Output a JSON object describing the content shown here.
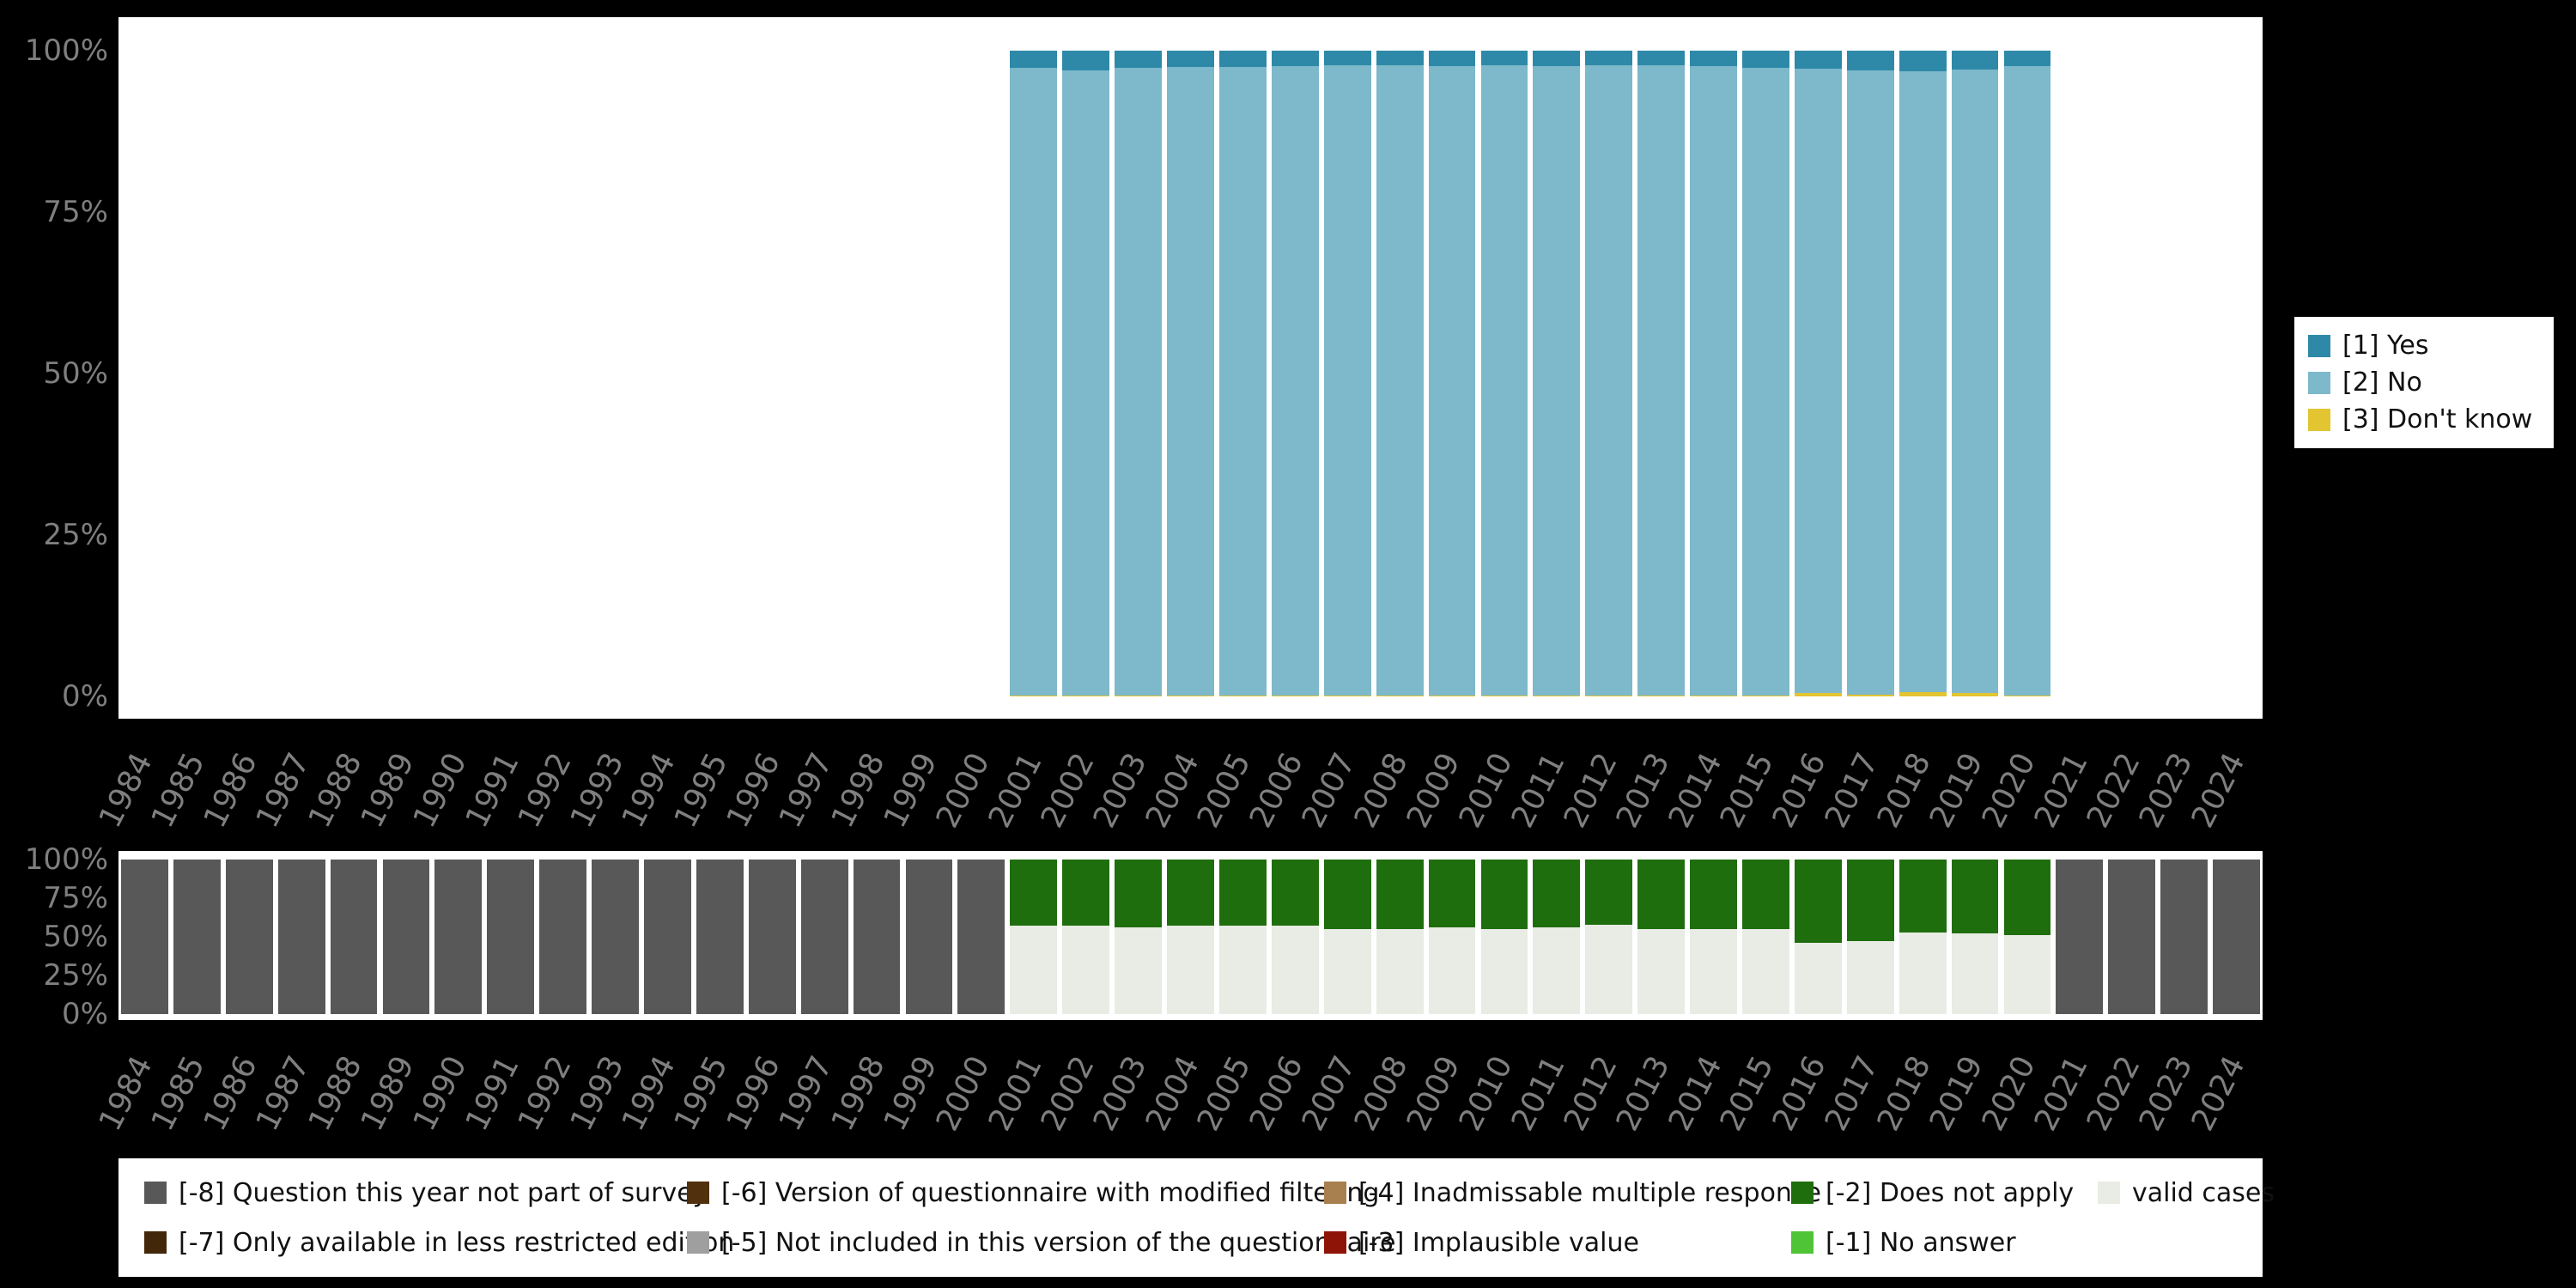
{
  "page": {
    "background": "#000000",
    "plot_background": "#ffffff",
    "axis_text_color": "#7f7f7f"
  },
  "chart_data": [
    {
      "id": "responses",
      "type": "bar",
      "stacked": true,
      "unit": "percent",
      "ylim": [
        0,
        100
      ],
      "y_ticks": [
        "100%",
        "75%",
        "50%",
        "25%",
        "0%"
      ],
      "legend_position": "right",
      "categories": [
        "1984",
        "1985",
        "1986",
        "1987",
        "1988",
        "1989",
        "1990",
        "1991",
        "1992",
        "1993",
        "1994",
        "1995",
        "1996",
        "1997",
        "1998",
        "1999",
        "2000",
        "2001",
        "2002",
        "2003",
        "2004",
        "2005",
        "2006",
        "2007",
        "2008",
        "2009",
        "2010",
        "2011",
        "2012",
        "2013",
        "2014",
        "2015",
        "2016",
        "2017",
        "2018",
        "2019",
        "2020",
        "2021",
        "2022",
        "2023",
        "2024"
      ],
      "series": [
        {
          "name": "[1] Yes",
          "color": "#2e89a8",
          "values": [
            0,
            0,
            0,
            0,
            0,
            0,
            0,
            0,
            0,
            0,
            0,
            0,
            0,
            0,
            0,
            0,
            0,
            2.6,
            3,
            2.6,
            2.5,
            2.5,
            2.4,
            2.3,
            2.3,
            2.4,
            2.3,
            2.4,
            2.3,
            2.3,
            2.4,
            2.6,
            2.8,
            3,
            3.2,
            2.9,
            2.4,
            0,
            0,
            0,
            0
          ]
        },
        {
          "name": "[2] No",
          "color": "#7db8cb",
          "values": [
            0,
            0,
            0,
            0,
            0,
            0,
            0,
            0,
            0,
            0,
            0,
            0,
            0,
            0,
            0,
            0,
            0,
            97.3,
            96.9,
            97.3,
            97.4,
            97.4,
            97.5,
            97.6,
            97.6,
            97.5,
            97.6,
            97.5,
            97.6,
            97.6,
            97.5,
            97.3,
            96.6,
            96.7,
            96.1,
            96.5,
            97.5,
            0,
            0,
            0,
            0
          ]
        },
        {
          "name": "[3] Don't know",
          "color": "#e3c431",
          "values": [
            0,
            0,
            0,
            0,
            0,
            0,
            0,
            0,
            0,
            0,
            0,
            0,
            0,
            0,
            0,
            0,
            0,
            0.1,
            0.1,
            0.1,
            0.1,
            0.1,
            0.1,
            0.1,
            0.1,
            0.1,
            0.1,
            0.1,
            0.1,
            0.1,
            0.1,
            0.1,
            0.6,
            0.3,
            0.7,
            0.6,
            0.1,
            0,
            0,
            0,
            0
          ]
        }
      ]
    },
    {
      "id": "missings",
      "type": "bar",
      "stacked": true,
      "unit": "percent",
      "ylim": [
        0,
        100
      ],
      "y_ticks": [
        "100%",
        "75%",
        "50%",
        "25%",
        "0%"
      ],
      "legend_position": "bottom",
      "categories": [
        "1984",
        "1985",
        "1986",
        "1987",
        "1988",
        "1989",
        "1990",
        "1991",
        "1992",
        "1993",
        "1994",
        "1995",
        "1996",
        "1997",
        "1998",
        "1999",
        "2000",
        "2001",
        "2002",
        "2003",
        "2004",
        "2005",
        "2006",
        "2007",
        "2008",
        "2009",
        "2010",
        "2011",
        "2012",
        "2013",
        "2014",
        "2015",
        "2016",
        "2017",
        "2018",
        "2019",
        "2020",
        "2021",
        "2022",
        "2023",
        "2024"
      ],
      "series": [
        {
          "name": "[-8] Question this year not part of survey",
          "color": "#585858",
          "values": [
            100,
            100,
            100,
            100,
            100,
            100,
            100,
            100,
            100,
            100,
            100,
            100,
            100,
            100,
            100,
            100,
            100,
            0,
            0,
            0,
            0,
            0,
            0,
            0,
            0,
            0,
            0,
            0,
            0,
            0,
            0,
            0,
            0,
            0,
            0,
            0,
            0,
            100,
            100,
            100,
            100
          ]
        },
        {
          "name": "[-2] Does not apply",
          "color": "#1f6e0e",
          "values": [
            0,
            0,
            0,
            0,
            0,
            0,
            0,
            0,
            0,
            0,
            0,
            0,
            0,
            0,
            0,
            0,
            0,
            43,
            43,
            44,
            43,
            43,
            43,
            45,
            45,
            44,
            45,
            44,
            42,
            45,
            45,
            45,
            54,
            53,
            47,
            48,
            49,
            0,
            0,
            0,
            0
          ]
        },
        {
          "name": "valid cases",
          "color": "#e8ece4",
          "values": [
            0,
            0,
            0,
            0,
            0,
            0,
            0,
            0,
            0,
            0,
            0,
            0,
            0,
            0,
            0,
            0,
            0,
            57,
            57,
            56,
            57,
            57,
            57,
            55,
            55,
            56,
            55,
            56,
            58,
            55,
            55,
            55,
            46,
            47,
            53,
            52,
            51,
            0,
            0,
            0,
            0
          ]
        }
      ]
    }
  ],
  "top_legend": {
    "items": [
      {
        "label": "[1] Yes",
        "color": "#2e89a8"
      },
      {
        "label": "[2] No",
        "color": "#7db8cb"
      },
      {
        "label": "[3] Don't know",
        "color": "#e3c431"
      }
    ]
  },
  "missing_legend": {
    "items": [
      {
        "label": "[-8] Question this year not part of survey",
        "color": "#585858"
      },
      {
        "label": "[-6] Version of questionnaire with modified filtering",
        "color": "#50300d"
      },
      {
        "label": "[-4] Inadmissable multiple response",
        "color": "#a87f4e"
      },
      {
        "label": "[-2] Does not apply",
        "color": "#1f6e0e"
      },
      {
        "label": "valid cases",
        "color": "#e8ece4"
      },
      {
        "label": "[-7] Only available in less restricted edition",
        "color": "#422708"
      },
      {
        "label": "[-5] Not included in this version of the questionnaire",
        "color": "#9f9f9f"
      },
      {
        "label": "[-3] Implausible value",
        "color": "#8e1408"
      },
      {
        "label": "[-1] No answer",
        "color": "#4fc436"
      }
    ]
  }
}
